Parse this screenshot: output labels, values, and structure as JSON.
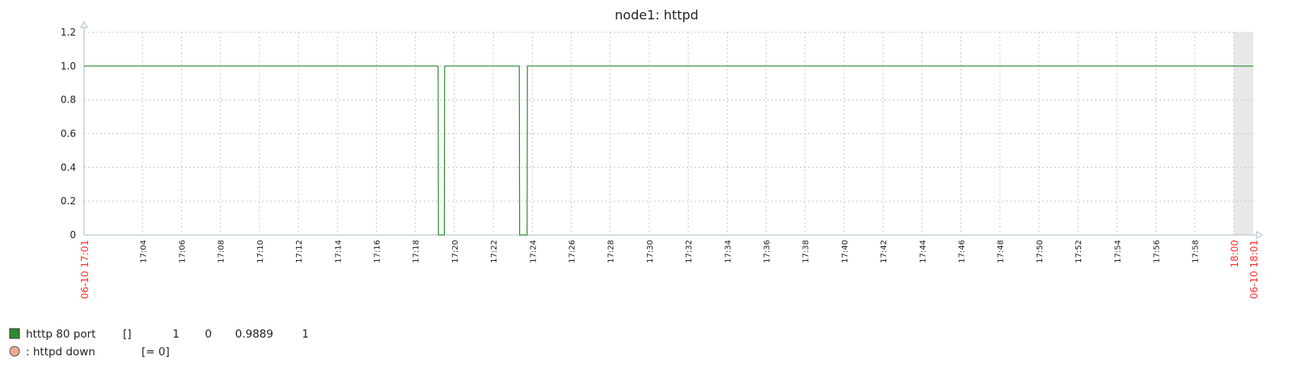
{
  "chart_data": {
    "type": "line",
    "title": "node1: httpd",
    "y_ticks": [
      "0",
      "0.2",
      "0.4",
      "0.6",
      "0.8",
      "1.0",
      "1.2"
    ],
    "ylim": [
      0,
      1.2
    ],
    "x_range": [
      "17:01",
      "18:01"
    ],
    "x_ticks": [
      "17:04",
      "17:06",
      "17:08",
      "17:10",
      "17:12",
      "17:14",
      "17:16",
      "17:18",
      "17:20",
      "17:22",
      "17:24",
      "17:26",
      "17:28",
      "17:30",
      "17:32",
      "17:34",
      "17:36",
      "17:38",
      "17:40",
      "17:42",
      "17:44",
      "17:46",
      "17:48",
      "17:50",
      "17:52",
      "17:54",
      "17:56",
      "17:58"
    ],
    "x_edge_ticks": [
      {
        "time": "17:01",
        "label": "06-10 17:01"
      },
      {
        "time": "18:00",
        "label": "18:00"
      },
      {
        "time": "18:01",
        "label": "06-10 18:01"
      }
    ],
    "shaded_region": [
      "18:00",
      "18:01"
    ],
    "grid": true,
    "series": [
      {
        "name": "htttp 80 port",
        "color": "#2e8b2e",
        "x": [
          "17:01",
          "17:19:10",
          "17:19:11",
          "17:19:29",
          "17:19:30",
          "17:23:20",
          "17:23:21",
          "17:23:44",
          "17:23:45",
          "18:01"
        ],
        "y": [
          1,
          1,
          0,
          0,
          1,
          1,
          0,
          0,
          1,
          1
        ]
      }
    ]
  },
  "legend": {
    "headers": [
      "",
      "",
      "",
      ""
    ],
    "items": [
      {
        "name": "htttp 80 port",
        "func": "[]",
        "values": [
          "1",
          "0",
          "0.9889",
          "1"
        ],
        "color": "#2e8b2e"
      },
      {
        "name": ": httpd down",
        "condition": "[= 0]",
        "color": "#f0a890"
      }
    ]
  }
}
